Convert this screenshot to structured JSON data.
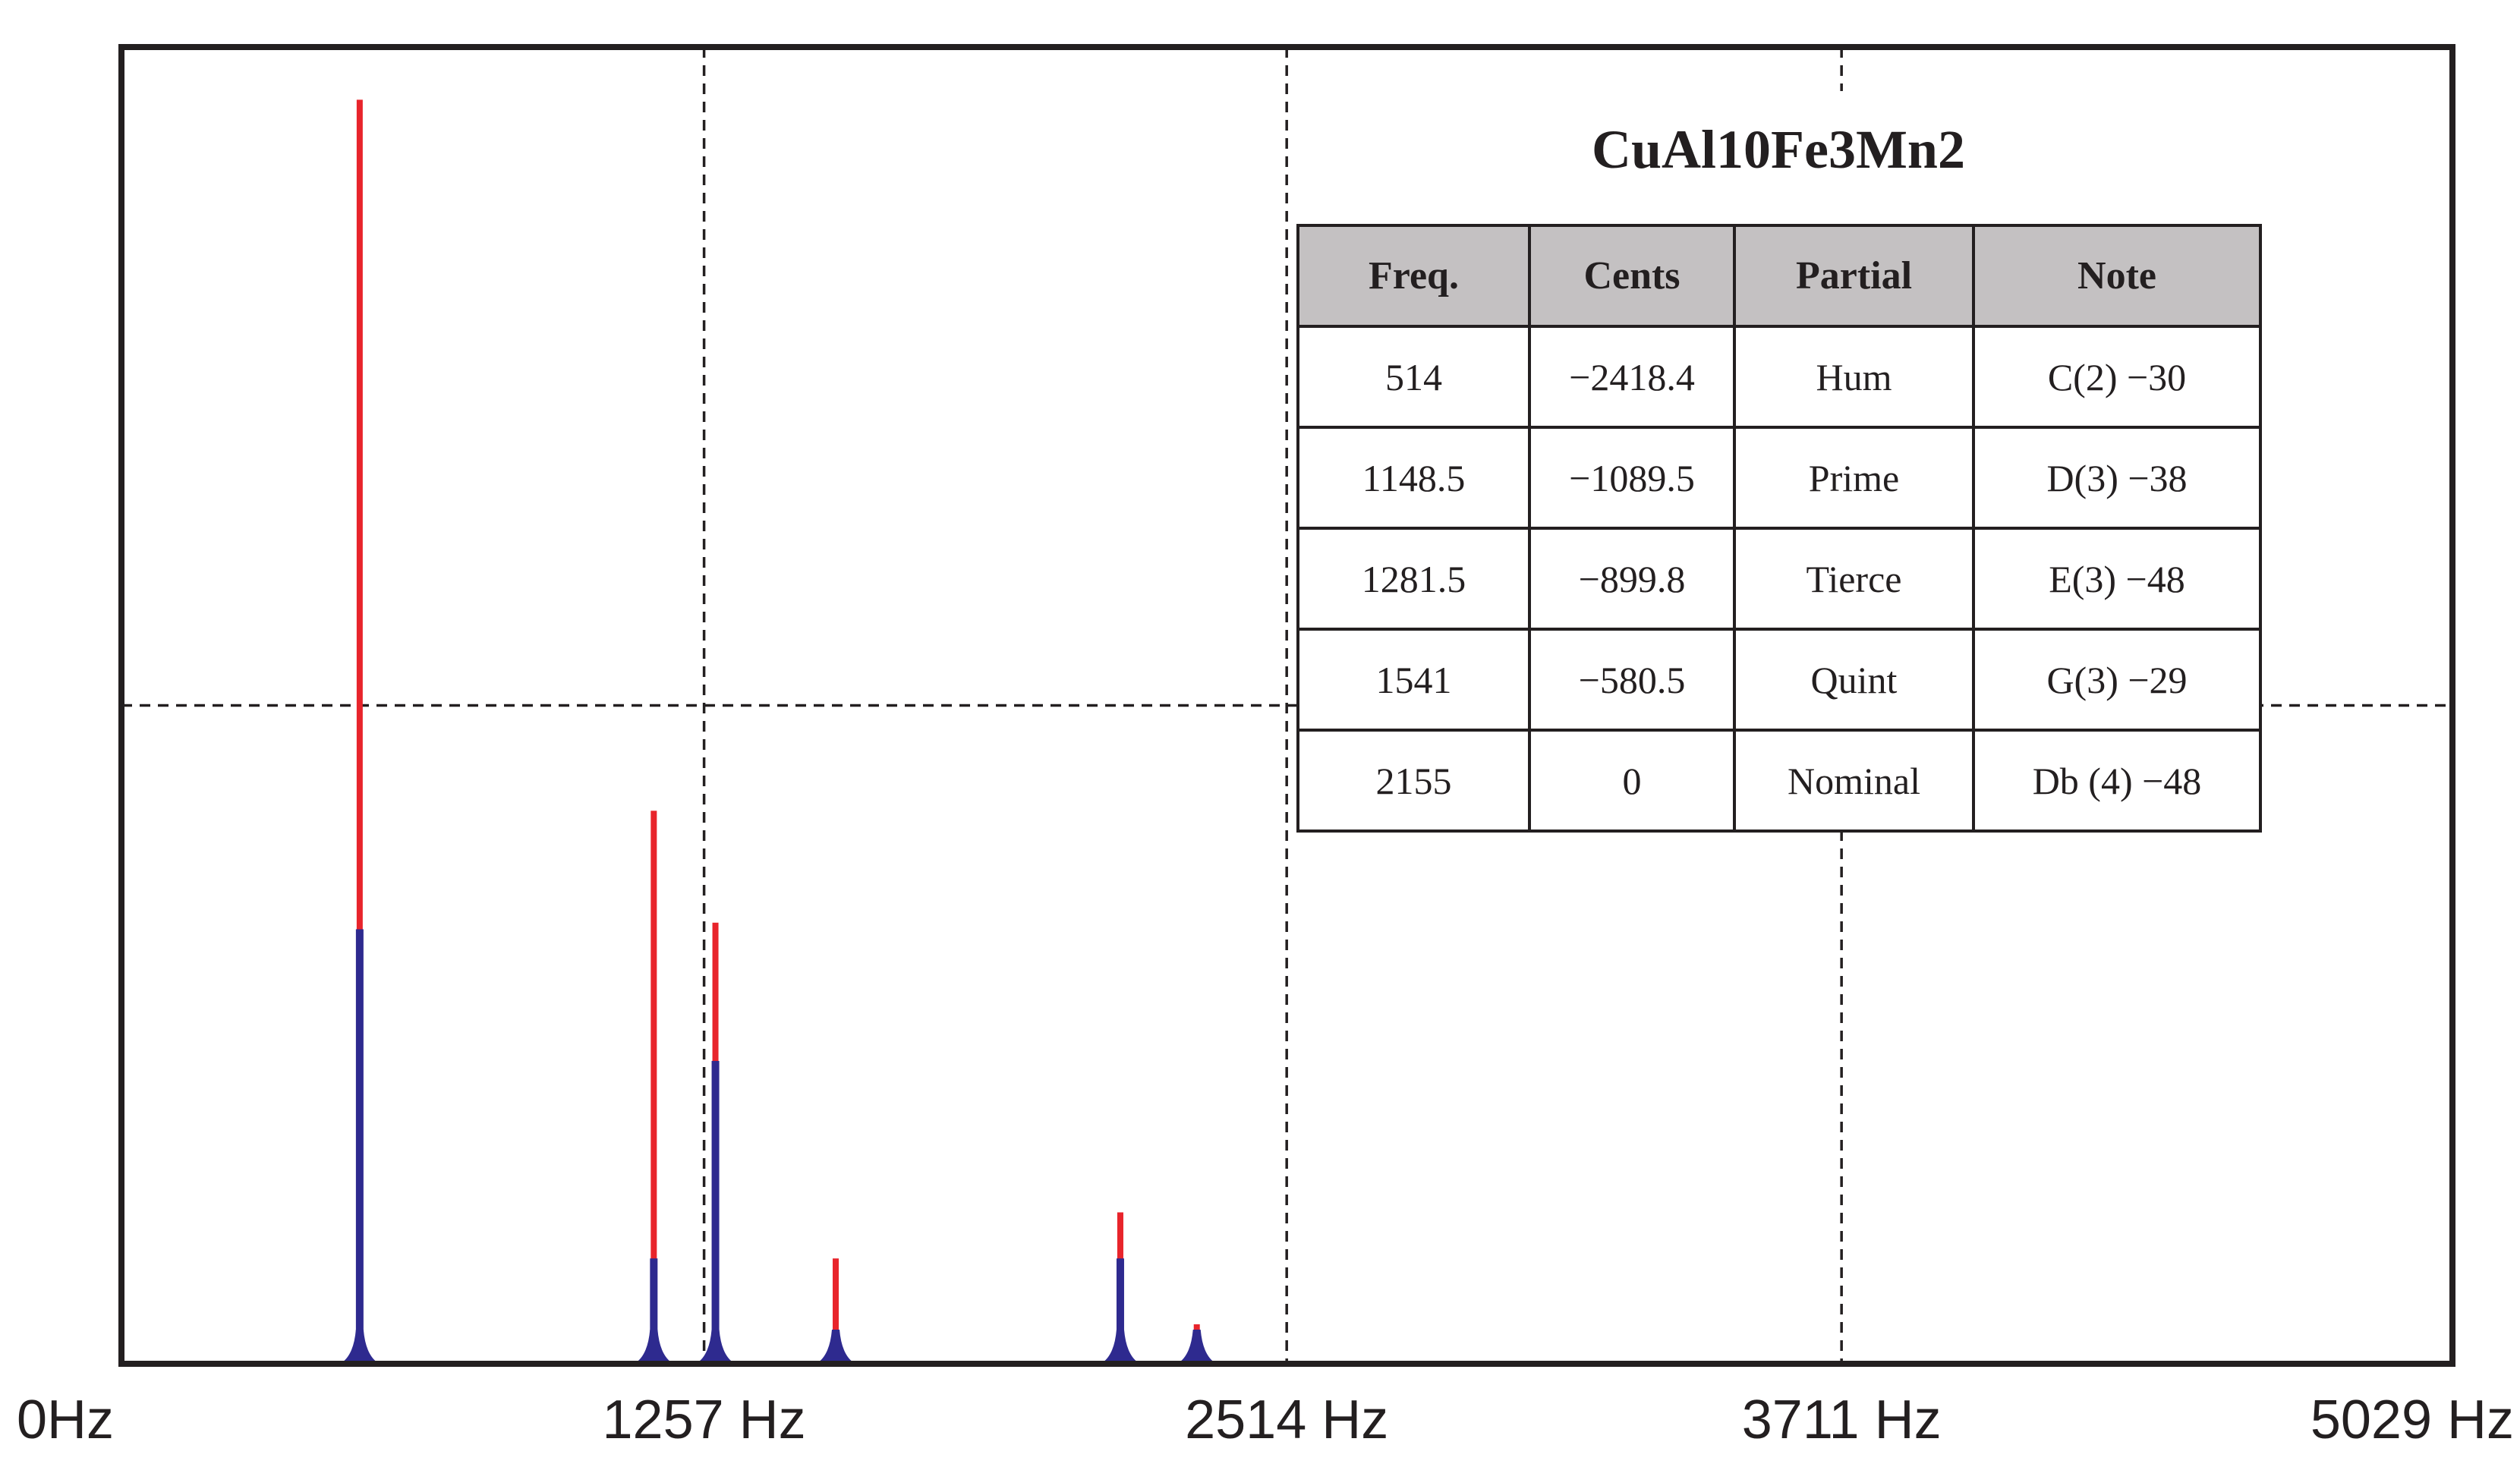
{
  "chart_data": {
    "type": "bar",
    "title": "",
    "xlabel": "",
    "ylabel": "",
    "xlim": [
      0,
      5029
    ],
    "ylim": [
      0,
      1
    ],
    "grid": "dashed",
    "x_ticks": [
      {
        "value": 0,
        "label": "0Hz"
      },
      {
        "value": 1257,
        "label": "1257 Hz"
      },
      {
        "value": 2514,
        "label": "2514 Hz"
      },
      {
        "value": 3711,
        "label": "3711 Hz"
      },
      {
        "value": 5029,
        "label": "5029 Hz"
      }
    ],
    "y_grid": [
      0.5
    ],
    "series": [
      {
        "color": "#e8242b",
        "peaks": [
          {
            "x": 514,
            "y": 0.96
          },
          {
            "x": 1148.5,
            "y": 0.42
          },
          {
            "x": 1281.5,
            "y": 0.335
          },
          {
            "x": 1541,
            "y": 0.08
          },
          {
            "x": 2155,
            "y": 0.115
          },
          {
            "x": 2320,
            "y": 0.03
          }
        ]
      },
      {
        "color": "#2e2a8f",
        "peaks": [
          {
            "x": 514,
            "y": 0.33
          },
          {
            "x": 1148.5,
            "y": 0.08
          },
          {
            "x": 1281.5,
            "y": 0.23
          },
          {
            "x": 1541,
            "y": 0.025
          },
          {
            "x": 2155,
            "y": 0.08
          },
          {
            "x": 2320,
            "y": 0.015
          }
        ]
      }
    ]
  },
  "inset": {
    "title": "CuAl10Fe3Mn2",
    "headers": [
      "Freq.",
      "Cents",
      "Partial",
      "Note"
    ],
    "rows": [
      [
        "514",
        "−2418.4",
        "Hum",
        "C(2) −30"
      ],
      [
        "1148.5",
        "−1089.5",
        "Prime",
        "D(3) −38"
      ],
      [
        "1281.5",
        "−899.8",
        "Tierce",
        "E(3) −48"
      ],
      [
        "1541",
        "−580.5",
        "Quint",
        "G(3) −29"
      ],
      [
        "2155",
        "0",
        "Nominal",
        "Db (4) −48"
      ]
    ]
  }
}
